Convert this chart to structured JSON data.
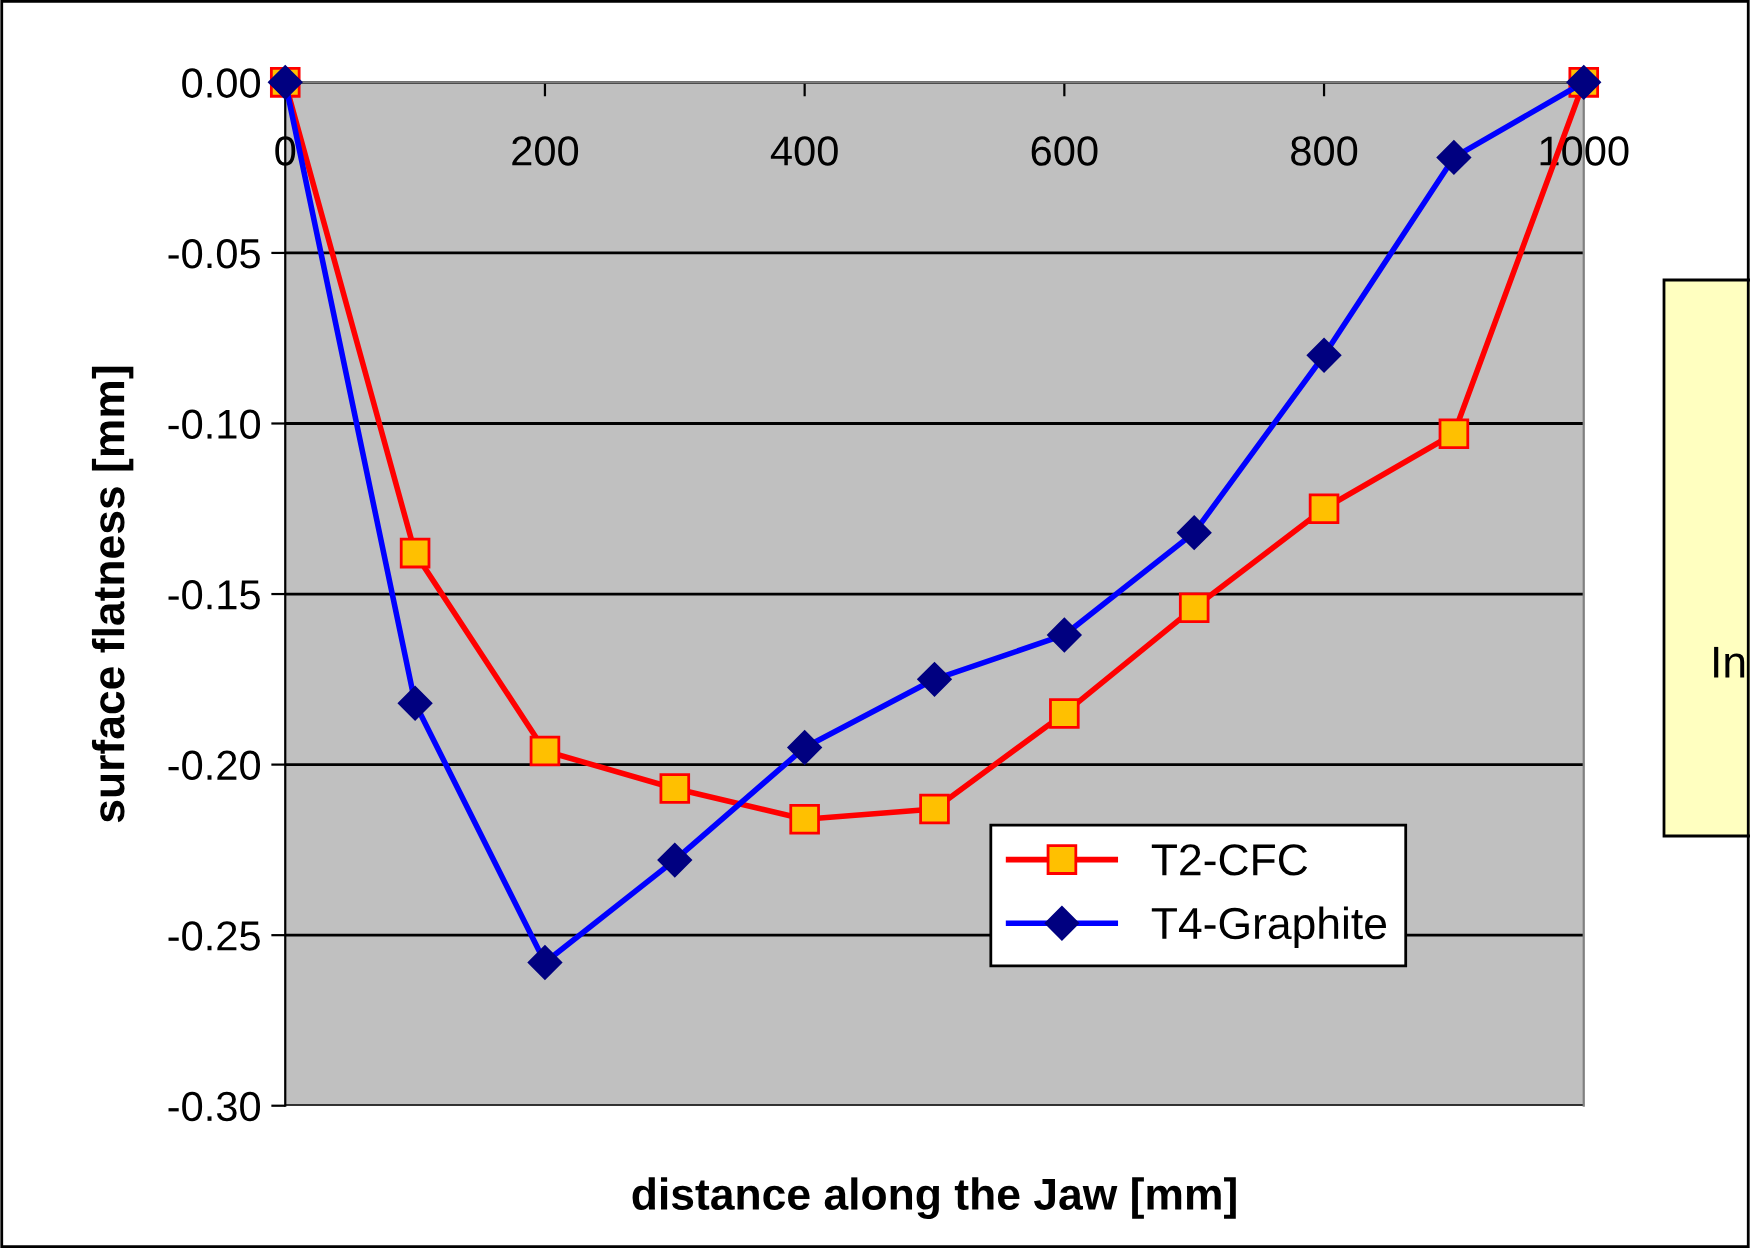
{
  "chart_data": {
    "type": "line",
    "xlabel": "distance along the Jaw [mm]",
    "ylabel": "surface flatness [mm]",
    "x": [
      0,
      100,
      200,
      300,
      400,
      500,
      600,
      700,
      800,
      900,
      1000
    ],
    "series": [
      {
        "name": "T2-CFC",
        "color": "#ff0000",
        "marker": "square",
        "values": [
          0,
          -0.138,
          -0.196,
          -0.207,
          -0.216,
          -0.213,
          -0.185,
          -0.154,
          -0.125,
          -0.103,
          0
        ]
      },
      {
        "name": "T4-Graphite",
        "color": "#0000ff",
        "marker": "diamond",
        "values": [
          0,
          -0.182,
          -0.258,
          -0.228,
          -0.195,
          -0.175,
          -0.162,
          -0.132,
          -0.08,
          -0.022,
          0
        ]
      }
    ],
    "xlim": [
      0,
      1000
    ],
    "xticks": [
      0,
      200,
      400,
      600,
      800,
      1000
    ],
    "ylim": [
      -0.3,
      0.0
    ],
    "yticks": [
      {
        "value": -0.3,
        "label": "-0.30"
      },
      {
        "value": -0.25,
        "label": "-0.25"
      },
      {
        "value": -0.2,
        "label": "-0.20"
      },
      {
        "value": -0.15,
        "label": "-0.15"
      },
      {
        "value": -0.1,
        "label": "-0.10"
      },
      {
        "value": -0.05,
        "label": "-0.05"
      },
      {
        "value": 0.0,
        "label": "0.00"
      }
    ],
    "grid": "y",
    "legend": "bottom right",
    "line_style": "solid",
    "annotations": [
      "In"
    ]
  }
}
